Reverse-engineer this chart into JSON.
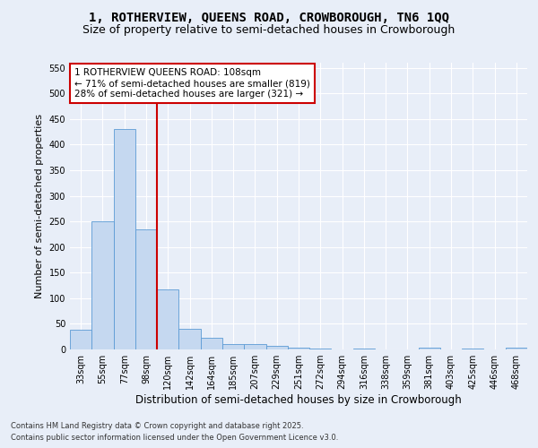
{
  "title1": "1, ROTHERVIEW, QUEENS ROAD, CROWBOROUGH, TN6 1QQ",
  "title2": "Size of property relative to semi-detached houses in Crowborough",
  "xlabel": "Distribution of semi-detached houses by size in Crowborough",
  "ylabel": "Number of semi-detached properties",
  "categories": [
    "33sqm",
    "55sqm",
    "77sqm",
    "98sqm",
    "120sqm",
    "142sqm",
    "164sqm",
    "185sqm",
    "207sqm",
    "229sqm",
    "251sqm",
    "272sqm",
    "294sqm",
    "316sqm",
    "338sqm",
    "359sqm",
    "381sqm",
    "403sqm",
    "425sqm",
    "446sqm",
    "468sqm"
  ],
  "values": [
    38,
    250,
    430,
    235,
    118,
    40,
    23,
    10,
    10,
    7,
    4,
    1,
    0,
    1,
    0,
    0,
    4,
    0,
    1,
    0,
    4
  ],
  "bar_color": "#c5d8f0",
  "bar_edge_color": "#5b9bd5",
  "vline_x": 3.5,
  "vline_color": "#cc0000",
  "annotation_text": "1 ROTHERVIEW QUEENS ROAD: 108sqm\n← 71% of semi-detached houses are smaller (819)\n28% of semi-detached houses are larger (321) →",
  "annotation_box_color": "#cc0000",
  "ylim": [
    0,
    560
  ],
  "yticks": [
    0,
    50,
    100,
    150,
    200,
    250,
    300,
    350,
    400,
    450,
    500,
    550
  ],
  "fig_bg_color": "#e8eef8",
  "plot_bg_color": "#e8eef8",
  "grid_color": "#ffffff",
  "footer1": "Contains HM Land Registry data © Crown copyright and database right 2025.",
  "footer2": "Contains public sector information licensed under the Open Government Licence v3.0.",
  "title1_fontsize": 10,
  "title2_fontsize": 9,
  "ylabel_fontsize": 8,
  "xlabel_fontsize": 8.5,
  "tick_fontsize": 7,
  "footer_fontsize": 6,
  "annotation_fontsize": 7.5
}
